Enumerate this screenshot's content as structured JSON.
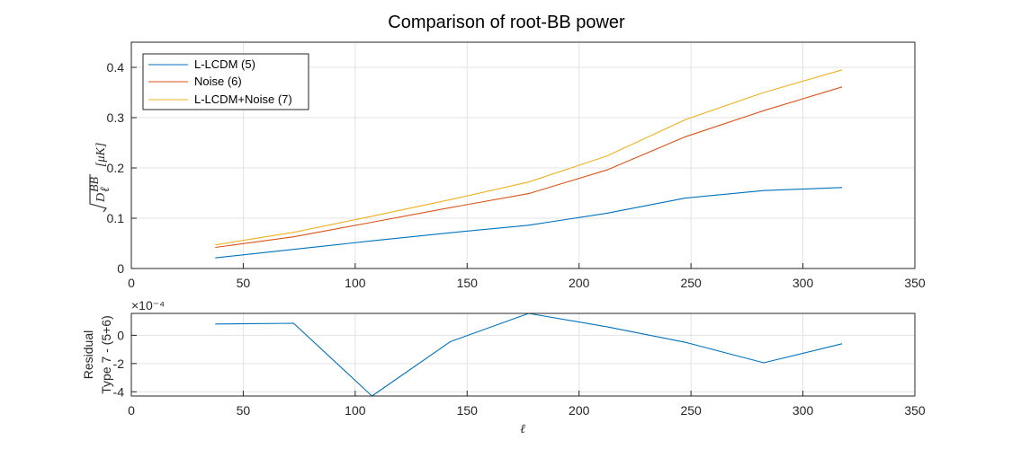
{
  "figure": {
    "title": "Comparison of root-BB power"
  },
  "chart_data": [
    {
      "type": "line",
      "title": "Comparison of root-BB power",
      "xlabel": "",
      "ylabel": "√D_ℓ^BB [μK]",
      "xlim": [
        0,
        350
      ],
      "ylim": [
        0,
        0.45
      ],
      "xticks": [
        0,
        50,
        100,
        150,
        200,
        250,
        300,
        350
      ],
      "yticks": [
        0,
        0.1,
        0.2,
        0.3,
        0.4
      ],
      "xtick_labels": [
        "0",
        "50",
        "100",
        "150",
        "200",
        "250",
        "300",
        "350"
      ],
      "ytick_labels": [
        "0",
        "0.1",
        "0.2",
        "0.3",
        "0.4"
      ],
      "grid": true,
      "legend_position": "top-left",
      "x": [
        37.5,
        72.5,
        107.5,
        142.5,
        177.5,
        212.5,
        247.5,
        282.5,
        317.5
      ],
      "series": [
        {
          "name": "L-LCDM (5)",
          "color": "#0072BD",
          "values": [
            0.021,
            0.038,
            0.055,
            0.071,
            0.086,
            0.11,
            0.14,
            0.155,
            0.161
          ]
        },
        {
          "name": "Noise (6)",
          "color": "#D95319",
          "values": [
            0.042,
            0.063,
            0.092,
            0.121,
            0.149,
            0.196,
            0.262,
            0.314,
            0.361
          ]
        },
        {
          "name": "L-LCDM+Noise (7)",
          "color": "#EDB120",
          "values": [
            0.047,
            0.072,
            0.104,
            0.137,
            0.172,
            0.224,
            0.296,
            0.35,
            0.395
          ]
        }
      ]
    },
    {
      "type": "line",
      "xlabel": "ℓ",
      "ylabel": "Residual Type 7 - (5+6)",
      "ylabel_lines": [
        "Residual",
        "Type 7 - (5+6)"
      ],
      "exponent_label": "×10⁻⁴",
      "y_unit": 0.0001,
      "xlim": [
        0,
        350
      ],
      "ylim": [
        -4.3,
        1.55
      ],
      "xticks": [
        0,
        50,
        100,
        150,
        200,
        250,
        300,
        350
      ],
      "yticks": [
        -4,
        -2,
        0
      ],
      "xtick_labels": [
        "0",
        "50",
        "100",
        "150",
        "200",
        "250",
        "300",
        "350"
      ],
      "ytick_labels": [
        "-4",
        "-2",
        "0"
      ],
      "grid": true,
      "x": [
        37.5,
        72.5,
        107.5,
        142.5,
        177.5,
        212.5,
        247.5,
        282.5,
        317.5
      ],
      "series": [
        {
          "color": "#0072BD",
          "values": [
            0.8,
            0.85,
            -4.3,
            -0.45,
            1.55,
            0.6,
            -0.5,
            -1.95,
            -0.6
          ]
        }
      ]
    }
  ]
}
